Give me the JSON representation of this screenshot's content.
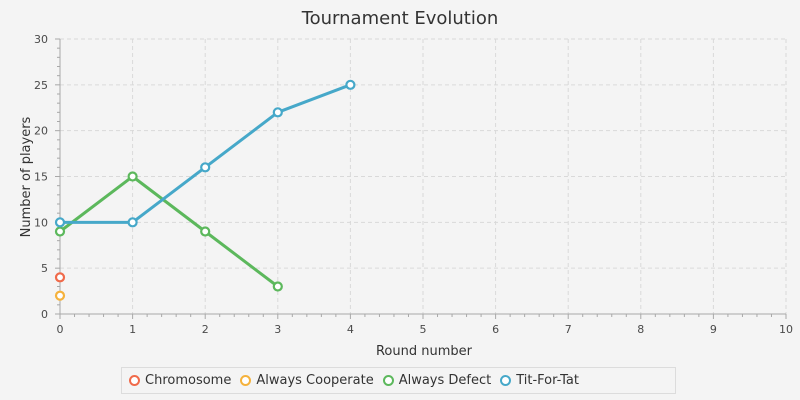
{
  "chart_data": {
    "type": "line",
    "title": "Tournament Evolution",
    "xlabel": "Round number",
    "ylabel": "Number of players",
    "xlim": [
      0,
      10
    ],
    "ylim": [
      0,
      30
    ],
    "x_ticks": [
      0,
      1,
      2,
      3,
      4,
      5,
      6,
      7,
      8,
      9,
      10
    ],
    "y_ticks": [
      0,
      5,
      10,
      15,
      20,
      25,
      30
    ],
    "grid": true,
    "legend_position": "bottom",
    "series": [
      {
        "name": "Chromosome",
        "color": "#f06a4a",
        "x": [
          0
        ],
        "values": [
          4
        ]
      },
      {
        "name": "Always Cooperate",
        "color": "#f5b23c",
        "x": [
          0
        ],
        "values": [
          2
        ]
      },
      {
        "name": "Always Defect",
        "color": "#5cb85c",
        "x": [
          0,
          1,
          2,
          3
        ],
        "values": [
          9,
          15,
          9,
          3
        ]
      },
      {
        "name": "Tit-For-Tat",
        "color": "#46a8c9",
        "x": [
          0,
          1,
          2,
          3,
          4
        ],
        "values": [
          10,
          10,
          16,
          22,
          25
        ]
      }
    ]
  }
}
